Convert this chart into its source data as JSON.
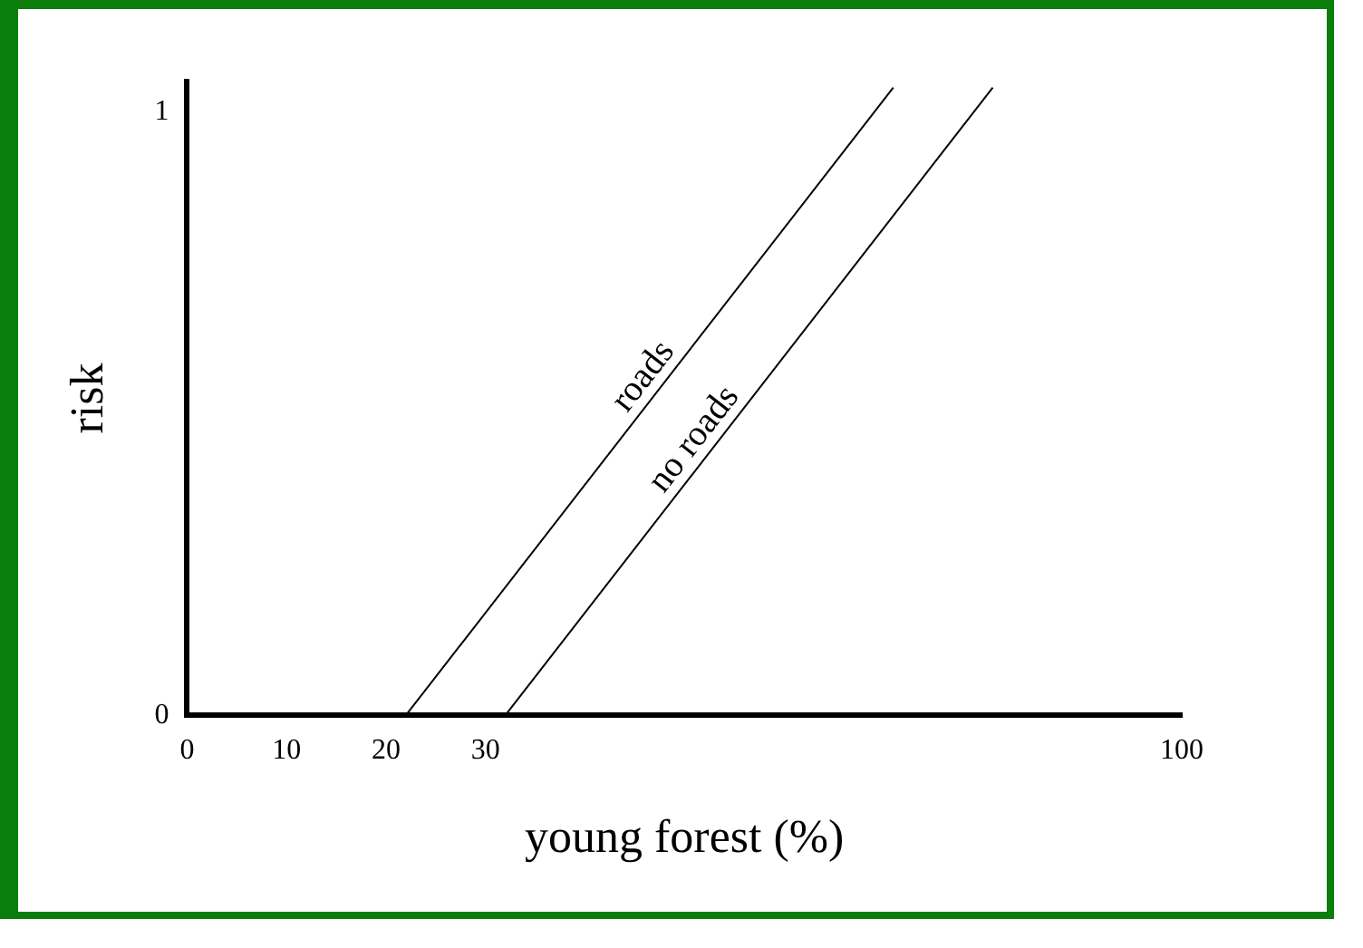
{
  "chart_data": {
    "type": "line",
    "xlabel": "young forest (%)",
    "ylabel": "risk",
    "xlim": [
      0,
      100
    ],
    "xticks": [
      0,
      10,
      20,
      30,
      100
    ],
    "ylim": [
      0,
      1.05
    ],
    "yticks": [
      0,
      1
    ],
    "grid": false,
    "legend": false,
    "marker": "none",
    "line_style": "solid",
    "series": [
      {
        "name": "roads",
        "color": "#000000",
        "x": [
          22,
          71
        ],
        "values": [
          0,
          1.04
        ]
      },
      {
        "name": "no roads",
        "color": "#000000",
        "x": [
          32,
          81
        ],
        "values": [
          0,
          1.04
        ]
      }
    ]
  }
}
